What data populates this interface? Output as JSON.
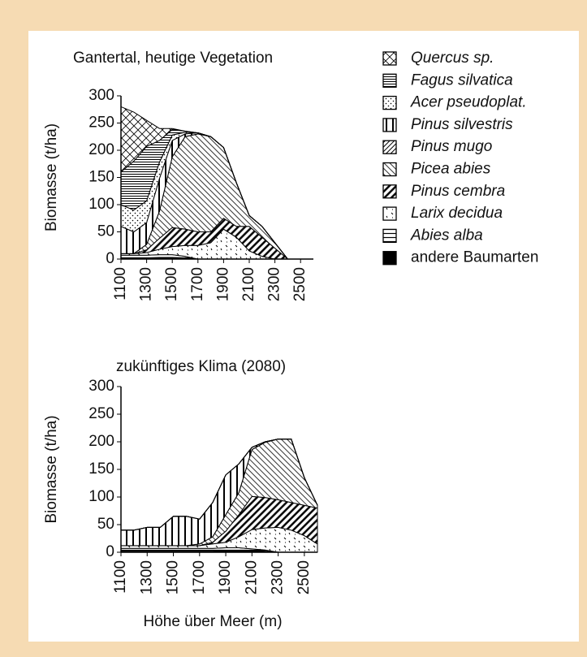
{
  "chart_data": [
    {
      "type": "stacked-area",
      "title": "Gantertal, heutige Vegetation",
      "ylabel": "Biomasse (t/ha)",
      "x": [
        1100,
        1200,
        1300,
        1400,
        1500,
        1600,
        1700,
        1800,
        1900,
        2000,
        2100,
        2200,
        2300,
        2400,
        2500,
        2600
      ],
      "xlim": [
        1100,
        2600
      ],
      "xticks": [
        1100,
        1300,
        1500,
        1700,
        1900,
        2100,
        2300,
        2500
      ],
      "ylim": [
        0,
        300
      ],
      "yticks": [
        0,
        50,
        100,
        150,
        200,
        250,
        300
      ],
      "series": [
        {
          "name": "andere Baumarten",
          "pattern": "solid",
          "values": [
            2,
            2,
            2,
            3,
            3,
            2,
            0,
            0,
            0,
            0,
            0,
            0,
            0,
            0,
            0,
            0
          ]
        },
        {
          "name": "Abies alba",
          "pattern": "hline-wide",
          "values": [
            5,
            5,
            5,
            5,
            5,
            3,
            0,
            0,
            0,
            0,
            0,
            0,
            0,
            0,
            0,
            0
          ]
        },
        {
          "name": "Larix decidua",
          "pattern": "larix",
          "values": [
            3,
            3,
            5,
            10,
            15,
            20,
            25,
            30,
            55,
            40,
            15,
            5,
            0,
            0,
            0,
            0
          ]
        },
        {
          "name": "Pinus cembra",
          "pattern": "diag-thick",
          "values": [
            0,
            0,
            5,
            20,
            35,
            30,
            25,
            20,
            20,
            20,
            45,
            35,
            20,
            0,
            0,
            0
          ]
        },
        {
          "name": "Picea abies",
          "pattern": "diag-fine",
          "values": [
            0,
            0,
            10,
            50,
            130,
            170,
            180,
            175,
            130,
            80,
            20,
            20,
            10,
            0,
            0,
            0
          ]
        },
        {
          "name": "Pinus mugo",
          "pattern": "diag-back",
          "values": [
            0,
            0,
            0,
            0,
            0,
            0,
            0,
            0,
            0,
            0,
            0,
            0,
            0,
            0,
            0,
            0
          ]
        },
        {
          "name": "Pinus silvestris",
          "pattern": "vlines",
          "values": [
            50,
            40,
            40,
            60,
            30,
            5,
            2,
            0,
            0,
            0,
            0,
            0,
            0,
            0,
            0,
            0
          ]
        },
        {
          "name": "Acer pseudoplat.",
          "pattern": "dots",
          "values": [
            40,
            40,
            40,
            30,
            10,
            3,
            0,
            0,
            0,
            0,
            0,
            0,
            0,
            0,
            0,
            0
          ]
        },
        {
          "name": "Fagus silvatica",
          "pattern": "hlines",
          "values": [
            60,
            90,
            100,
            40,
            10,
            2,
            0,
            0,
            0,
            0,
            0,
            0,
            0,
            0,
            0,
            0
          ]
        },
        {
          "name": "Quercus sp.",
          "pattern": "cross",
          "values": [
            120,
            90,
            48,
            22,
            2,
            0,
            0,
            0,
            0,
            0,
            0,
            0,
            0,
            0,
            0,
            0
          ]
        }
      ]
    },
    {
      "type": "stacked-area",
      "title": "zukünftiges Klima (2080)",
      "ylabel": "Biomasse (t/ha)",
      "xlabel": "Höhe über Meer (m)",
      "x": [
        1100,
        1200,
        1300,
        1400,
        1500,
        1600,
        1700,
        1800,
        1900,
        2000,
        2100,
        2200,
        2300,
        2400,
        2500,
        2600
      ],
      "xlim": [
        1100,
        2600
      ],
      "xticks": [
        1100,
        1300,
        1500,
        1700,
        1900,
        2100,
        2300,
        2500
      ],
      "ylim": [
        0,
        300
      ],
      "yticks": [
        0,
        50,
        100,
        150,
        200,
        250,
        300
      ],
      "series": [
        {
          "name": "andere Baumarten",
          "pattern": "solid",
          "values": [
            2,
            2,
            2,
            2,
            2,
            2,
            2,
            2,
            3,
            3,
            3,
            2,
            0,
            0,
            0,
            0
          ]
        },
        {
          "name": "Abies alba",
          "pattern": "hline-wide",
          "values": [
            5,
            5,
            5,
            5,
            5,
            5,
            5,
            5,
            5,
            5,
            3,
            2,
            0,
            0,
            0,
            0
          ]
        },
        {
          "name": "Larix decidua",
          "pattern": "larix",
          "values": [
            5,
            5,
            5,
            5,
            5,
            5,
            5,
            8,
            10,
            20,
            35,
            40,
            45,
            40,
            30,
            15
          ]
        },
        {
          "name": "Pinus cembra",
          "pattern": "diag-thick",
          "values": [
            0,
            0,
            0,
            0,
            0,
            0,
            0,
            3,
            20,
            40,
            60,
            55,
            50,
            50,
            55,
            65
          ]
        },
        {
          "name": "Picea abies",
          "pattern": "diag-fine",
          "values": [
            0,
            0,
            0,
            0,
            0,
            0,
            3,
            10,
            30,
            40,
            85,
            100,
            110,
            115,
            50,
            5
          ]
        },
        {
          "name": "Pinus mugo",
          "pattern": "diag-back",
          "values": [
            0,
            0,
            0,
            0,
            0,
            0,
            0,
            0,
            0,
            0,
            0,
            0,
            0,
            0,
            0,
            0
          ]
        },
        {
          "name": "Pinus silvestris",
          "pattern": "vlines",
          "values": [
            28,
            28,
            33,
            33,
            53,
            53,
            45,
            62,
            72,
            52,
            4,
            1,
            0,
            0,
            0,
            0
          ]
        },
        {
          "name": "Acer pseudoplat.",
          "pattern": "dots",
          "values": [
            0,
            0,
            0,
            0,
            0,
            0,
            0,
            0,
            0,
            0,
            0,
            0,
            0,
            0,
            0,
            0
          ]
        },
        {
          "name": "Fagus silvatica",
          "pattern": "hlines",
          "values": [
            0,
            0,
            0,
            0,
            0,
            0,
            0,
            0,
            0,
            0,
            0,
            0,
            0,
            0,
            0,
            0
          ]
        },
        {
          "name": "Quercus sp.",
          "pattern": "cross",
          "values": [
            0,
            0,
            0,
            0,
            0,
            0,
            0,
            0,
            0,
            0,
            0,
            0,
            0,
            0,
            0,
            0
          ]
        }
      ]
    }
  ]
}
